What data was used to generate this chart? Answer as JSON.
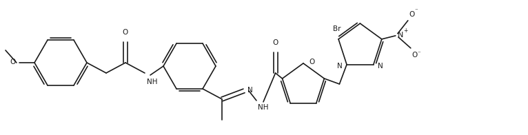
{
  "figsize": [
    7.66,
    1.96
  ],
  "dpi": 100,
  "bg_color": "#ffffff",
  "line_color": "#1a1a1a",
  "line_width": 1.2,
  "font_size": 7.5,
  "xlim": [
    0,
    766
  ],
  "ylim": [
    0,
    196
  ]
}
